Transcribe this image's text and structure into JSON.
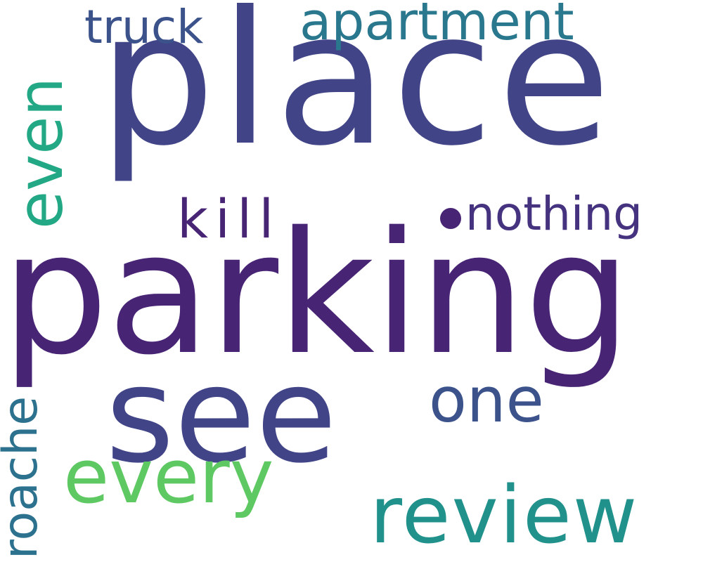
{
  "words": [
    {
      "key": "place",
      "text": "place",
      "color": "#414487"
    },
    {
      "key": "parking",
      "text": "parking",
      "color": "#482475"
    },
    {
      "key": "see",
      "text": "see",
      "color": "#414487"
    },
    {
      "key": "apartment",
      "text": "apartment",
      "color": "#2a788e"
    },
    {
      "key": "truck",
      "text": "truck",
      "color": "#3b528b"
    },
    {
      "key": "even",
      "text": "even",
      "color": "#22a884"
    },
    {
      "key": "kill",
      "text": "kill",
      "color": "#482475"
    },
    {
      "key": "nothing",
      "text": "nothing",
      "color": "#46337f"
    },
    {
      "key": "one",
      "text": "one",
      "color": "#3b528b"
    },
    {
      "key": "every",
      "text": "every",
      "color": "#5ec962"
    },
    {
      "key": "review",
      "text": "review",
      "color": "#21918c"
    },
    {
      "key": "roache",
      "text": "roache",
      "color": "#2c728e"
    }
  ],
  "dot_color": "#482475"
}
